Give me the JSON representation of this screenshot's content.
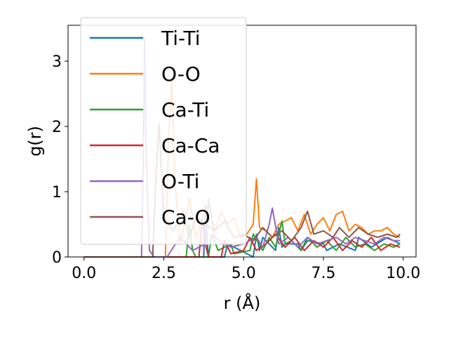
{
  "chart_data": {
    "type": "line",
    "title": "",
    "xlabel": "r (Å)",
    "ylabel": "g(r)",
    "xlim": [
      -0.5,
      10.4
    ],
    "ylim": [
      0,
      3.55
    ],
    "xticks": [
      0.0,
      2.5,
      5.0,
      7.5,
      10.0
    ],
    "xtick_labels": [
      "0.0",
      "2.5",
      "5.0",
      "7.5",
      "10.0"
    ],
    "yticks": [
      0,
      1,
      2,
      3
    ],
    "ytick_labels": [
      "0",
      "1",
      "2",
      "3"
    ],
    "grid": false,
    "legend_position": "upper-left",
    "series": [
      {
        "name": "Ti-Ti",
        "color": "#1f77b4",
        "x": [
          0,
          3.75,
          3.8,
          3.85,
          3.9,
          4.4,
          4.5,
          5.3,
          5.4,
          5.5,
          5.6,
          6.0,
          6.1,
          6.2,
          6.3,
          6.7,
          6.8,
          7.0,
          7.5,
          7.6,
          8.0,
          8.5,
          8.6,
          9.0,
          9.5,
          9.9
        ],
        "y": [
          0,
          0,
          0.8,
          0.3,
          0,
          0,
          0.2,
          0,
          0.35,
          0.1,
          0.3,
          0.1,
          0.45,
          0.15,
          0.2,
          0.2,
          0.1,
          0.25,
          0.2,
          0.1,
          0.2,
          0.1,
          0.3,
          0.15,
          0.3,
          0.2
        ]
      },
      {
        "name": "O-O",
        "color": "#ff7f0e",
        "x": [
          0,
          2.55,
          2.65,
          2.75,
          2.85,
          3.0,
          3.1,
          3.3,
          3.5,
          3.7,
          3.9,
          4.1,
          4.3,
          4.5,
          4.7,
          4.9,
          5.1,
          5.3,
          5.4,
          5.5,
          5.7,
          5.9,
          6.1,
          6.3,
          6.5,
          6.7,
          6.9,
          7.1,
          7.3,
          7.5,
          7.7,
          7.9,
          8.1,
          8.3,
          8.5,
          8.7,
          8.9,
          9.1,
          9.3,
          9.5,
          9.7,
          9.9
        ],
        "y": [
          0,
          0,
          1.8,
          2.75,
          1.2,
          0.2,
          0.4,
          0.9,
          0.3,
          0.6,
          0.8,
          0.4,
          0.7,
          0.5,
          0.6,
          0.3,
          0.35,
          0.5,
          1.2,
          0.45,
          0.4,
          0.3,
          0.5,
          0.55,
          0.6,
          0.4,
          0.65,
          0.35,
          0.5,
          0.6,
          0.4,
          0.65,
          0.7,
          0.4,
          0.5,
          0.45,
          0.35,
          0.4,
          0.4,
          0.45,
          0.35,
          0.3
        ]
      },
      {
        "name": "Ca-Ti",
        "color": "#2ca02c",
        "x": [
          0,
          3.2,
          3.3,
          3.4,
          3.5,
          3.9,
          4.0,
          4.2,
          4.6,
          4.7,
          5.2,
          5.3,
          5.6,
          5.8,
          6.0,
          6.2,
          6.3,
          6.5,
          6.8,
          7.0,
          7.3,
          7.6,
          7.9,
          8.2,
          8.5,
          8.8,
          9.1,
          9.4,
          9.7,
          9.9
        ],
        "y": [
          0,
          0,
          0.5,
          0.1,
          0,
          0,
          0.35,
          0.1,
          0.2,
          0.05,
          0.1,
          0.35,
          0.1,
          0.3,
          0.15,
          0.55,
          0.2,
          0.25,
          0.1,
          0.3,
          0.15,
          0.25,
          0.1,
          0.3,
          0.15,
          0.2,
          0.1,
          0.2,
          0.15,
          0.2
        ]
      },
      {
        "name": "Ca-Ca",
        "color": "#d62728",
        "x": [
          0,
          3.6,
          3.7,
          3.8,
          3.9,
          4.3,
          4.4,
          4.6,
          5.0,
          5.2,
          5.4,
          5.7,
          6.0,
          6.3,
          6.6,
          6.9,
          7.2,
          7.5,
          7.8,
          8.1,
          8.4,
          8.7,
          9.0,
          9.3,
          9.6,
          9.9
        ],
        "y": [
          0,
          0,
          0.6,
          0.2,
          0,
          0,
          0.25,
          0.05,
          0.1,
          0.3,
          0.1,
          0.2,
          0.35,
          0.15,
          0.3,
          0.1,
          0.25,
          0.15,
          0.3,
          0.1,
          0.25,
          0.15,
          0.3,
          0.1,
          0.2,
          0.15
        ]
      },
      {
        "name": "O-Ti",
        "color": "#9467bd",
        "x": [
          0,
          1.8,
          1.85,
          1.9,
          1.95,
          2.05,
          2.2,
          2.6,
          3.0,
          3.4,
          3.8,
          3.9,
          4.0,
          4.1,
          4.4,
          4.6,
          5.0,
          5.4,
          5.6,
          5.8,
          5.9,
          6.1,
          6.4,
          6.7,
          7.0,
          7.3,
          7.6,
          7.9,
          8.2,
          8.5,
          8.8,
          9.1,
          9.4,
          9.7,
          9.9
        ],
        "y": [
          0,
          0,
          1.2,
          3.35,
          1.5,
          0.1,
          0,
          0,
          0.3,
          0.1,
          0.2,
          0.9,
          0.6,
          0.3,
          0.2,
          0.15,
          0.2,
          0.3,
          0.15,
          0.5,
          0.75,
          0.2,
          0.3,
          0.15,
          0.3,
          0.2,
          0.25,
          0.3,
          0.2,
          0.3,
          0.25,
          0.2,
          0.3,
          0.25,
          0.25
        ]
      },
      {
        "name": "Ca-O",
        "color": "#8c564b",
        "x": [
          0,
          2.15,
          2.25,
          2.35,
          2.5,
          2.8,
          3.1,
          3.3,
          3.5,
          3.8,
          4.1,
          4.4,
          4.7,
          5.0,
          5.3,
          5.6,
          5.9,
          6.2,
          6.5,
          6.8,
          7.0,
          7.2,
          7.5,
          7.8,
          8.0,
          8.3,
          8.6,
          8.9,
          9.2,
          9.5,
          9.8,
          9.9
        ],
        "y": [
          0,
          0,
          1.2,
          2.05,
          0.6,
          0.4,
          0.7,
          0.3,
          0.6,
          0.5,
          0.4,
          0.55,
          0.3,
          0.35,
          0.25,
          0.45,
          0.3,
          0.4,
          0.25,
          0.45,
          0.7,
          0.35,
          0.4,
          0.3,
          0.45,
          0.3,
          0.45,
          0.35,
          0.3,
          0.35,
          0.3,
          0.35
        ]
      }
    ]
  }
}
